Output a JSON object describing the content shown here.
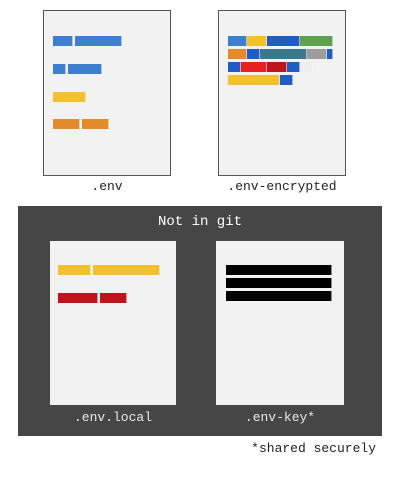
{
  "files": {
    "env": {
      "label": ".env"
    },
    "env_encrypted": {
      "label": ".env-encrypted"
    },
    "env_local": {
      "label": ".env.local"
    },
    "env_key": {
      "label": ".env-key*"
    }
  },
  "git_panel": {
    "title": "Not in git"
  },
  "footnote": "*shared securely",
  "colors": {
    "blue": "#3d7fce",
    "yellow": "#f2c12e",
    "orange": "#e38a2b",
    "green": "#5fa04e",
    "teal": "#3b7a8c",
    "red": "#e8211e",
    "dark_red": "#c0131b",
    "navy": "#1f5cc4",
    "gray": "#9c9c9c",
    "black": "#000000",
    "panel": "#464646",
    "page": "#f2f2f2"
  }
}
